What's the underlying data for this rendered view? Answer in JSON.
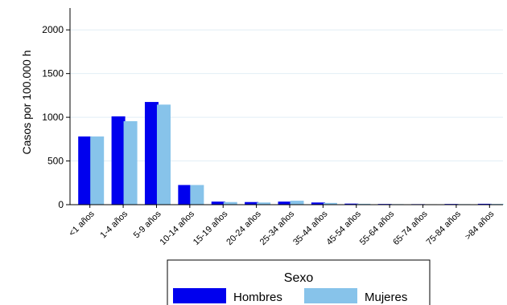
{
  "chart_data": {
    "type": "bar",
    "ylabel": "Casos por 100.000 h",
    "ylim": [
      0,
      2250
    ],
    "yticks": [
      0,
      500,
      1000,
      1500,
      2000
    ],
    "grid": true,
    "categories": [
      "<1 años",
      "1-4 años",
      "5-9 años",
      "10-14 años",
      "15-19 años",
      "20-24 años",
      "25-34 años",
      "35-44 años",
      "45-54 años",
      "55-64 años",
      "65-74 años",
      "75-84 años",
      ">84 años"
    ],
    "series": [
      {
        "name": "Hombres",
        "color": "#0000ee",
        "values": [
          780,
          1010,
          1175,
          225,
          35,
          30,
          35,
          25,
          12,
          8,
          6,
          8,
          10
        ]
      },
      {
        "name": "Mujeres",
        "color": "#87c3ea",
        "values": [
          780,
          955,
          1145,
          225,
          30,
          25,
          45,
          20,
          10,
          6,
          5,
          6,
          8
        ]
      }
    ],
    "legend": {
      "title": "Sexo",
      "position": "bottom"
    }
  }
}
